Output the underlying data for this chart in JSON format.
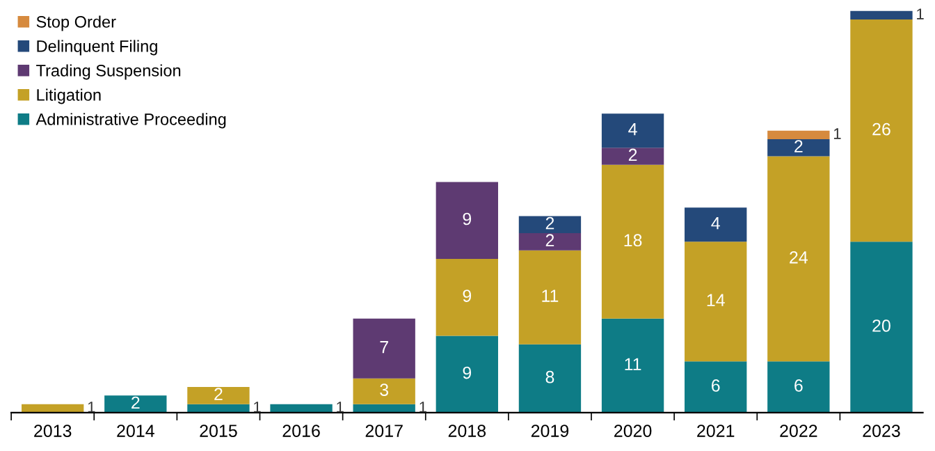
{
  "chart_data": {
    "type": "bar",
    "stacked": true,
    "data_labels": true,
    "legend": "top left",
    "grid": false,
    "categories": [
      "2013",
      "2014",
      "2015",
      "2016",
      "2017",
      "2018",
      "2019",
      "2020",
      "2021",
      "2022",
      "2023"
    ],
    "series": [
      {
        "name": "Administrative Proceeding",
        "color": "#0e7c86",
        "values": [
          null,
          2,
          1,
          1,
          1,
          9,
          8,
          11,
          6,
          6,
          20
        ]
      },
      {
        "name": "Litigation",
        "color": "#c4a126",
        "values": [
          1,
          null,
          2,
          null,
          3,
          9,
          11,
          18,
          14,
          24,
          26
        ]
      },
      {
        "name": "Trading Suspension",
        "color": "#5e3a72",
        "values": [
          null,
          null,
          null,
          null,
          7,
          9,
          2,
          2,
          null,
          null,
          null
        ]
      },
      {
        "name": "Delinquent Filing",
        "color": "#24497a",
        "values": [
          null,
          null,
          null,
          null,
          null,
          null,
          2,
          4,
          4,
          2,
          1
        ]
      },
      {
        "name": "Stop Order",
        "color": "#d68a3e",
        "values": [
          null,
          null,
          null,
          null,
          null,
          null,
          null,
          null,
          null,
          1,
          null
        ]
      }
    ]
  }
}
